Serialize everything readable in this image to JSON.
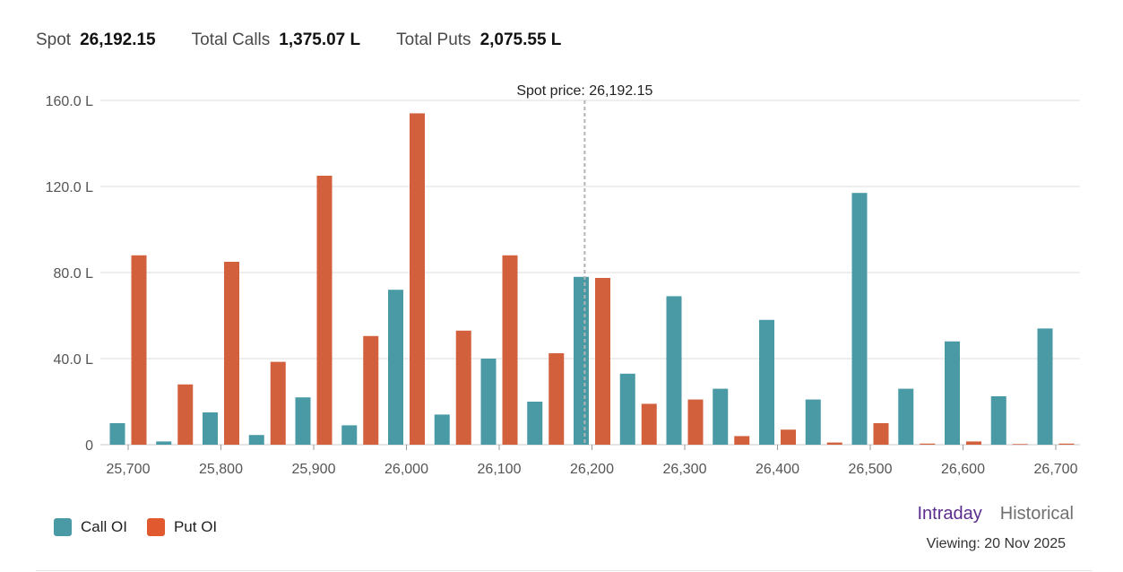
{
  "summary": {
    "spot_label": "Spot",
    "spot_value": "26,192.15",
    "calls_label": "Total Calls",
    "calls_value": "1,375.07 L",
    "puts_label": "Total Puts",
    "puts_value": "2,075.55 L"
  },
  "legend": {
    "call_label": "Call OI",
    "put_label": "Put OI"
  },
  "toggle": {
    "intraday": "Intraday",
    "historical": "Historical",
    "active": "Intraday"
  },
  "viewing": "Viewing: 20 Nov 2025",
  "colors": {
    "call": "#4a9aa5",
    "put": "#d3603d",
    "active_toggle": "#5b2d8e"
  },
  "chart_data": {
    "type": "bar",
    "title": "",
    "xlabel": "",
    "ylabel": "",
    "ylim": [
      0,
      160
    ],
    "yticks": [
      0,
      40,
      80,
      120,
      160
    ],
    "ytick_labels": [
      "0",
      "40.0 L",
      "80.0 L",
      "120.0 L",
      "160.0 L"
    ],
    "xticks": [
      25700,
      25800,
      25900,
      26000,
      26100,
      26200,
      26300,
      26400,
      26500,
      26600,
      26700
    ],
    "xtick_labels": [
      "25,700",
      "25,800",
      "25,900",
      "26,000",
      "26,100",
      "26,200",
      "26,300",
      "26,400",
      "26,500",
      "26,600",
      "26,700"
    ],
    "xlim": [
      25680,
      26720
    ],
    "grid": true,
    "legend_position": "bottom-left",
    "annotation": {
      "label": "Spot price: 26,192.15",
      "x": 26192.15
    },
    "strikes": [
      25700,
      25750,
      25800,
      25850,
      25900,
      25950,
      26000,
      26050,
      26100,
      26150,
      26200,
      26250,
      26300,
      26350,
      26400,
      26450,
      26500,
      26550,
      26600,
      26650,
      26700
    ],
    "series": [
      {
        "name": "Call OI",
        "color": "#4a9aa5",
        "values": [
          10,
          1.5,
          15,
          4.5,
          22,
          9,
          72,
          14,
          40,
          20,
          78,
          33,
          69,
          26,
          58,
          21,
          117,
          26,
          48,
          22.5,
          54
        ]
      },
      {
        "name": "Put OI",
        "color": "#d3603d",
        "values": [
          88,
          28,
          85,
          38.5,
          125,
          50.5,
          154,
          53,
          88,
          42.5,
          77.5,
          19,
          21,
          4,
          7,
          1,
          10,
          0.5,
          1.5,
          0.3,
          0.5
        ]
      }
    ]
  }
}
